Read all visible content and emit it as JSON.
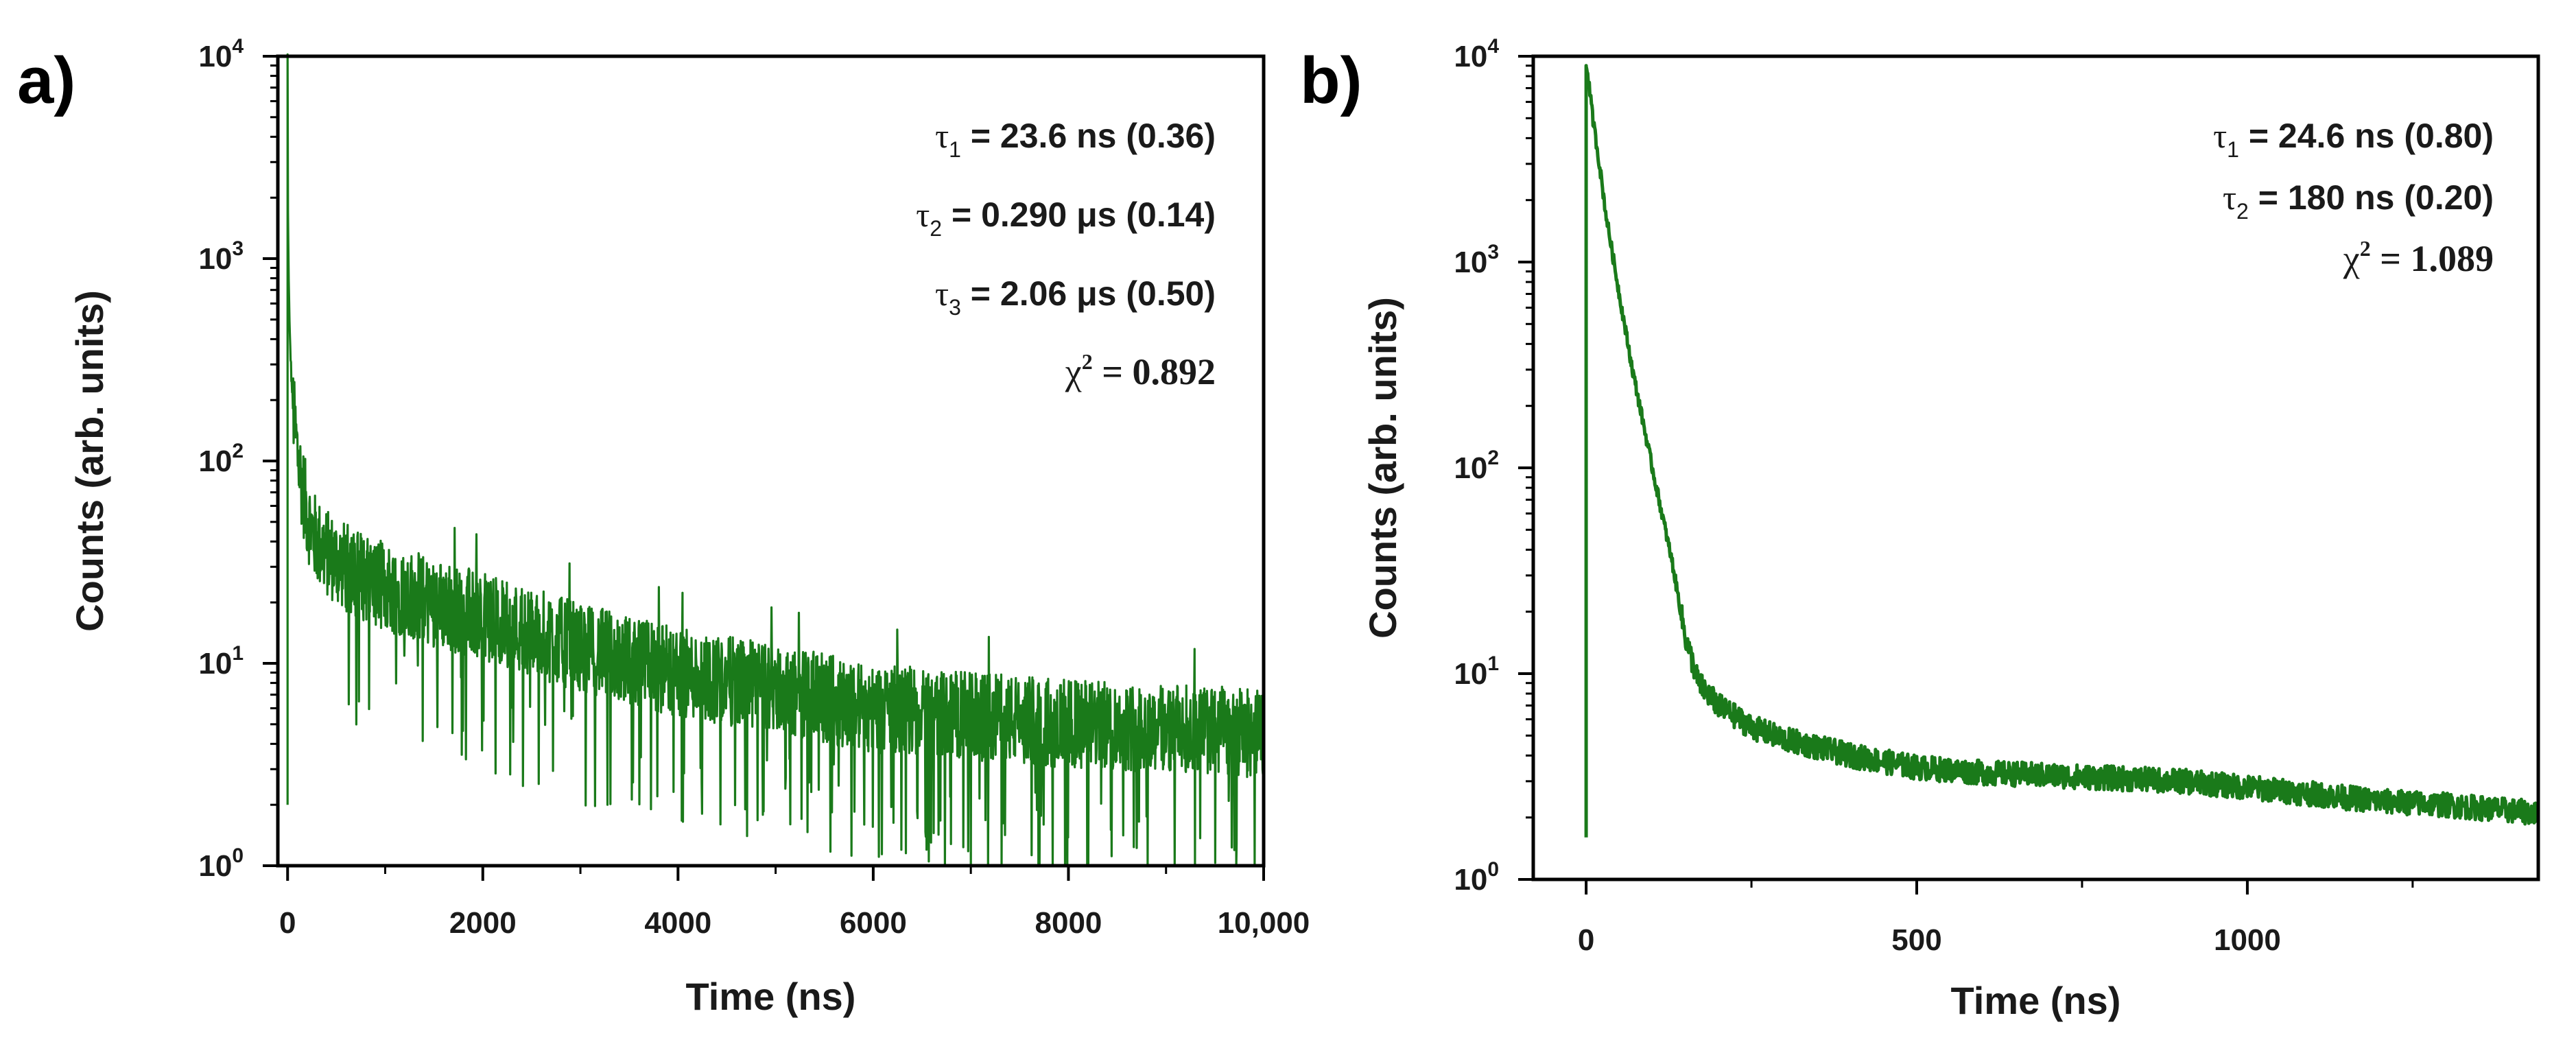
{
  "chart_data": [
    {
      "panel": "a)",
      "type": "line",
      "title": "",
      "xlabel": "Time (ns)",
      "ylabel": "Counts (arb. units)",
      "xlim": [
        -100,
        10000
      ],
      "ylim": [
        1,
        10000
      ],
      "yscale": "log",
      "x_ticks": [
        0,
        2000,
        4000,
        6000,
        8000,
        10000
      ],
      "x_tick_labels": [
        "0",
        "2000",
        "4000",
        "6000",
        "8000",
        "10,000"
      ],
      "y_ticks": [
        1,
        10,
        100,
        1000,
        10000
      ],
      "y_tick_labels": [
        {
          "base": "10",
          "exp": "0"
        },
        {
          "base": "10",
          "exp": "1"
        },
        {
          "base": "10",
          "exp": "2"
        },
        {
          "base": "10",
          "exp": "3"
        },
        {
          "base": "10",
          "exp": "4"
        }
      ],
      "series": [
        {
          "name": "decay",
          "color": "#1a7a1a",
          "x": [
            0,
            3,
            10,
            20,
            40,
            70,
            100,
            150,
            200,
            250,
            300,
            400,
            500,
            700,
            1000,
            1500,
            2000,
            3000,
            4000,
            5000,
            6000,
            7000,
            8000,
            9000,
            10000
          ],
          "y": [
            10000,
            1800,
            900,
            450,
            250,
            150,
            110,
            75,
            55,
            45,
            40,
            35,
            32,
            28,
            24,
            20,
            17,
            12,
            9,
            7.5,
            6,
            5.5,
            5,
            4.8,
            4.5
          ]
        }
      ],
      "annotations": [
        {
          "symbol": "τ",
          "sub": "1",
          "text": "=   23.6 ns (0.36)"
        },
        {
          "symbol": "τ",
          "sub": "2",
          "text": "= 0.290 μs (0.14)"
        },
        {
          "symbol": "τ",
          "sub": "3",
          "text": "=   2.06 μs (0.50)"
        },
        {
          "symbol": "χ",
          "sup": "2",
          "text": "= 0.892"
        }
      ]
    },
    {
      "panel": "b)",
      "type": "line",
      "title": "",
      "xlabel": "Time (ns)",
      "ylabel": "Counts (arb. units)",
      "xlim": [
        -80,
        1440
      ],
      "ylim": [
        1,
        10000
      ],
      "yscale": "log",
      "x_ticks": [
        0,
        500,
        1000
      ],
      "x_tick_labels": [
        "0",
        "500",
        "1000"
      ],
      "y_ticks": [
        1,
        10,
        100,
        1000,
        10000
      ],
      "y_tick_labels": [
        {
          "base": "10",
          "exp": "0"
        },
        {
          "base": "10",
          "exp": "1"
        },
        {
          "base": "10",
          "exp": "2"
        },
        {
          "base": "10",
          "exp": "3"
        },
        {
          "base": "10",
          "exp": "4"
        }
      ],
      "series": [
        {
          "name": "decay",
          "color": "#1a7a1a",
          "x": [
            0,
            2,
            5,
            10,
            20,
            30,
            50,
            70,
            100,
            130,
            150,
            170,
            200,
            250,
            300,
            400,
            500,
            600,
            700,
            800,
            900,
            1000,
            1100,
            1200,
            1300,
            1440
          ],
          "y": [
            9000,
            8500,
            7000,
            5000,
            3000,
            1700,
            700,
            300,
            100,
            35,
            15,
            9,
            7,
            5.5,
            4.8,
            4,
            3.5,
            3.3,
            3.2,
            3.1,
            3,
            2.8,
            2.6,
            2.4,
            2.3,
            2.1
          ]
        }
      ],
      "annotations": [
        {
          "symbol": "τ",
          "sub": "1",
          "text": "= 24.6 ns (0.80)"
        },
        {
          "symbol": "τ",
          "sub": "2",
          "text": "=  180 ns (0.20)"
        },
        {
          "symbol": "χ",
          "sup": "2",
          "text": " = 1.089"
        }
      ]
    }
  ]
}
